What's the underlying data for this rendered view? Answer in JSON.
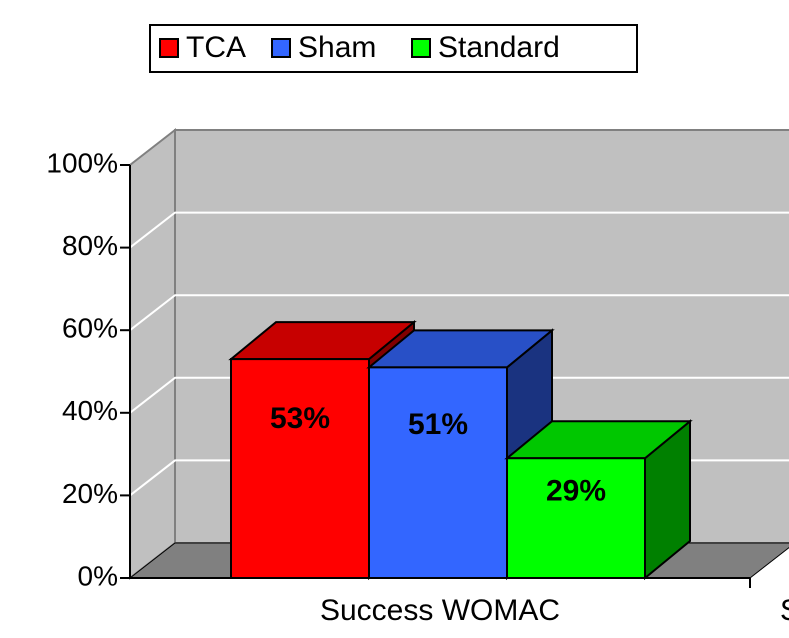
{
  "chart_data": {
    "type": "bar3d",
    "categories": [
      "Success WOMAC",
      "S"
    ],
    "series": [
      {
        "name": "TCA",
        "color": "#ff0000",
        "values": [
          53,
          null
        ],
        "value_labels": [
          "53%",
          null
        ]
      },
      {
        "name": "Sham",
        "color": "#3366ff",
        "values": [
          51,
          null
        ],
        "value_labels": [
          "51%",
          null
        ]
      },
      {
        "name": "Standard",
        "color": "#00ff00",
        "values": [
          29,
          null
        ],
        "value_labels": [
          "29%",
          null
        ]
      }
    ],
    "ylim": [
      0,
      100
    ],
    "yticks": [
      {
        "value": 0,
        "label": "0%"
      },
      {
        "value": 20,
        "label": "20%"
      },
      {
        "value": 40,
        "label": "40%"
      },
      {
        "value": 60,
        "label": "60%"
      },
      {
        "value": 80,
        "label": "80%"
      },
      {
        "value": 100,
        "label": "100%"
      }
    ],
    "grid": true,
    "legend": "top"
  }
}
